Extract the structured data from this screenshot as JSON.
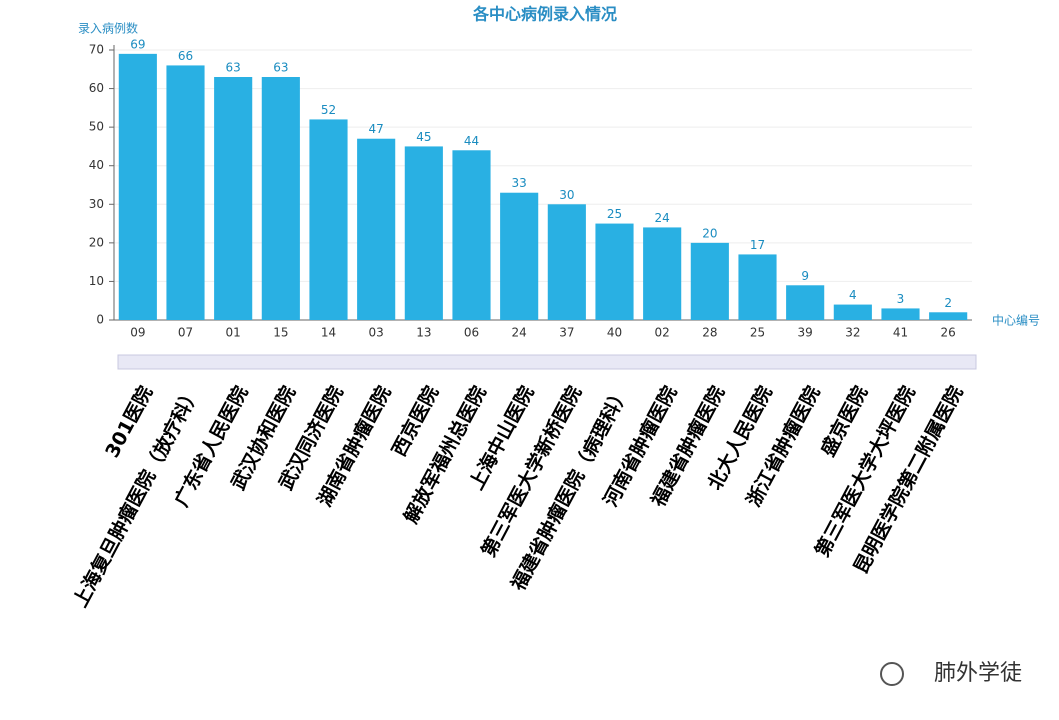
{
  "chart_data": {
    "type": "bar",
    "title": "各中心病例录入情况",
    "y_label": "录入病例数",
    "x_label": "中心编号",
    "categories": [
      "09",
      "07",
      "01",
      "15",
      "14",
      "03",
      "13",
      "06",
      "24",
      "37",
      "40",
      "02",
      "28",
      "25",
      "39",
      "32",
      "41",
      "26"
    ],
    "hospitals": [
      "301医院",
      "上海复旦肿瘤医院（放疗科）",
      "广东省人民医院",
      "武汉协和医院",
      "武汉同济医院",
      "湖南省肿瘤医院",
      "西京医院",
      "解放军福州总医院",
      "上海中山医院",
      "第三军医大学新桥医院",
      "福建省肿瘤医院（病理科）",
      "河南省肿瘤医院",
      "福建省肿瘤医院",
      "北大人民医院",
      "浙江省肿瘤医院",
      "盛京医院",
      "第三军医大学大坪医院",
      "昆明医学院第二附属医院"
    ],
    "values": [
      69,
      66,
      63,
      63,
      52,
      47,
      45,
      44,
      33,
      30,
      25,
      24,
      20,
      17,
      9,
      4,
      3,
      2
    ],
    "color": "#29b0e3",
    "ylim": [
      0,
      70
    ],
    "yticks": [
      0,
      10,
      20,
      30,
      40,
      50,
      60,
      70
    ],
    "grid": true
  },
  "watermark": "肺外学徒"
}
